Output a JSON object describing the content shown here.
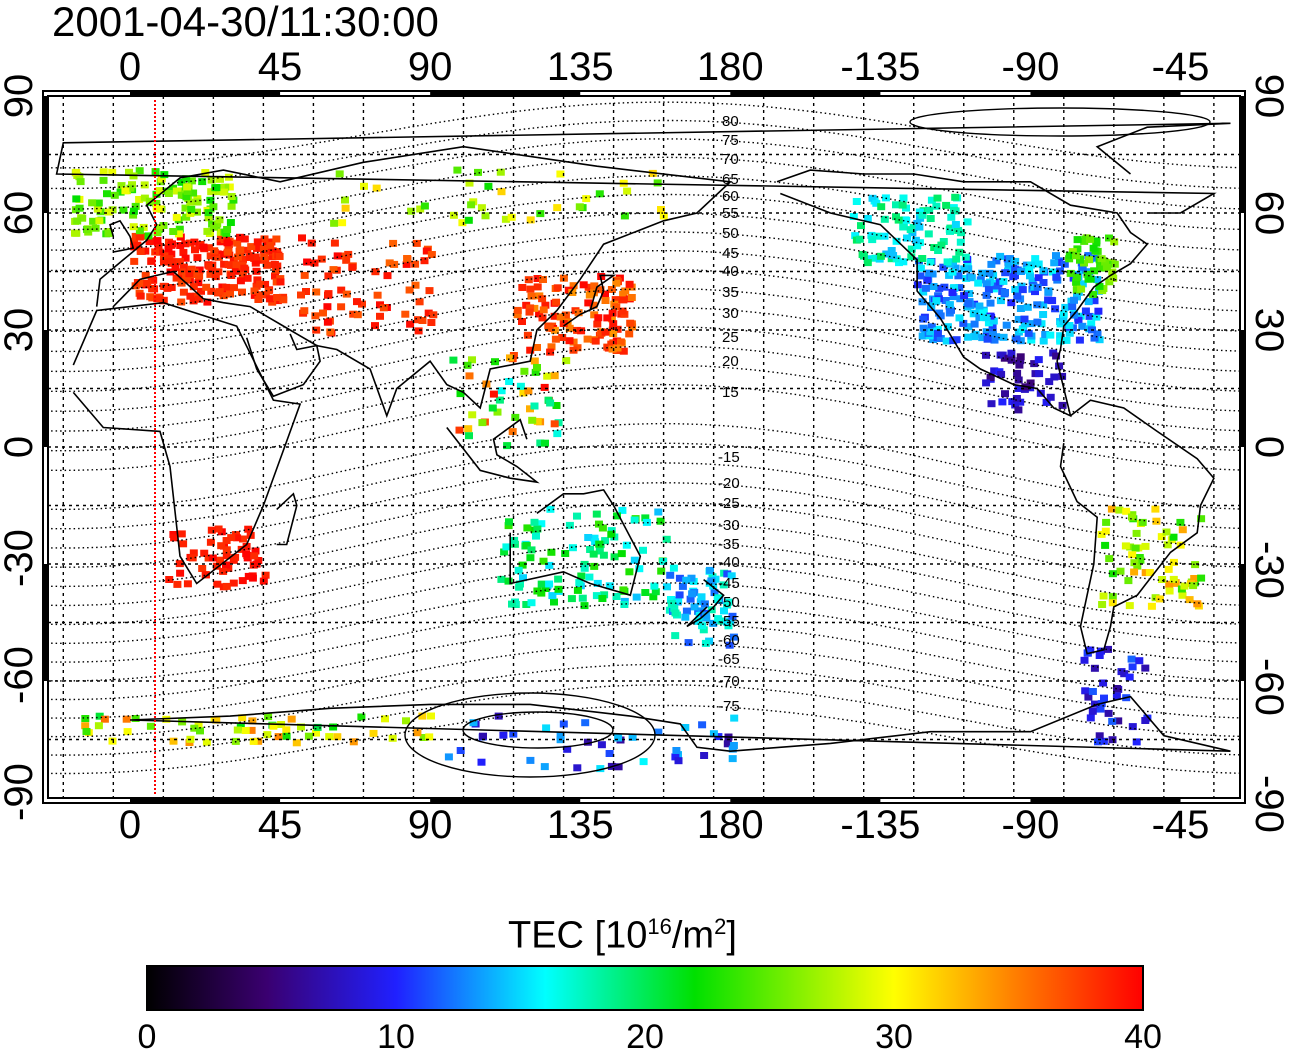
{
  "title": "2001-04-30/11:30:00",
  "map": {
    "lon_labels": [
      "0",
      "45",
      "90",
      "135",
      "180",
      "-135",
      "-90",
      "-45"
    ],
    "lat_labels": [
      "90",
      "60",
      "30",
      "0",
      "-30",
      "-60",
      "-90"
    ],
    "contour_labels": [
      "80",
      "75",
      "70",
      "65",
      "60",
      "55",
      "50",
      "45",
      "40",
      "35",
      "30",
      "25",
      "20",
      "15",
      "-15",
      "-20",
      "-25",
      "-30",
      "-35",
      "-40",
      "-45",
      "-50",
      "-55",
      "-60",
      "-65",
      "-70",
      "-75"
    ]
  },
  "colorbar": {
    "title_main": "TEC  [10",
    "title_exp": "16",
    "title_unit": "/m",
    "title_exp2": "2",
    "title_close": "]",
    "ticks": [
      "0",
      "10",
      "20",
      "30",
      "40"
    ],
    "colors": [
      "#000000",
      "#3a0070",
      "#2020ff",
      "#00ffff",
      "#00e000",
      "#ffff00",
      "#ff8000",
      "#ff0000"
    ]
  }
}
